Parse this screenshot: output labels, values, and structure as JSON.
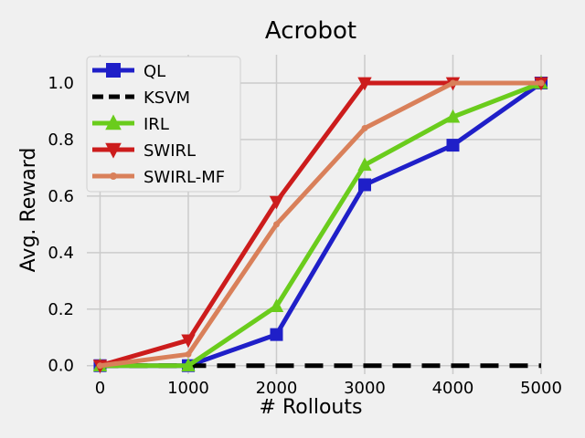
{
  "chart_data": {
    "type": "line",
    "title": "Acrobot",
    "xlabel": "# Rollouts",
    "ylabel": "Avg. Reward",
    "x": [
      0,
      1000,
      2000,
      3000,
      4000,
      5000
    ],
    "xlim": [
      -150,
      5000
    ],
    "ylim": [
      -0.03,
      1.1
    ],
    "xticks": [
      0,
      1000,
      2000,
      3000,
      4000,
      5000
    ],
    "yticks": [
      0.0,
      0.2,
      0.4,
      0.6,
      0.8,
      1.0
    ],
    "xtick_labels": [
      "0",
      "1000",
      "2000",
      "3000",
      "4000",
      "5000"
    ],
    "ytick_labels": [
      "0.0",
      "0.2",
      "0.4",
      "0.6",
      "0.8",
      "1.0"
    ],
    "grid": true,
    "legend_position": "top-left",
    "series": [
      {
        "name": "QL",
        "color": "#1f1fc8",
        "marker": "square",
        "dash": "solid",
        "values": [
          0.0,
          0.0,
          0.11,
          0.64,
          0.78,
          1.0
        ]
      },
      {
        "name": "KSVM",
        "color": "#000000",
        "marker": "none",
        "dash": "dashed",
        "values": [
          0.0,
          0.0,
          0.0,
          0.0,
          0.0,
          0.0
        ]
      },
      {
        "name": "IRL",
        "color": "#6acc1c",
        "marker": "triangle-up",
        "dash": "solid",
        "values": [
          0.0,
          0.0,
          0.21,
          0.71,
          0.88,
          1.0
        ]
      },
      {
        "name": "SWIRL",
        "color": "#cc1c1c",
        "marker": "triangle-down",
        "dash": "solid",
        "values": [
          0.0,
          0.09,
          0.58,
          1.0,
          1.0,
          1.0
        ]
      },
      {
        "name": "SWIRL-MF",
        "color": "#d9805a",
        "marker": "circle",
        "dash": "solid",
        "values": [
          0.0,
          0.04,
          0.5,
          0.84,
          1.0,
          1.0
        ]
      }
    ]
  }
}
